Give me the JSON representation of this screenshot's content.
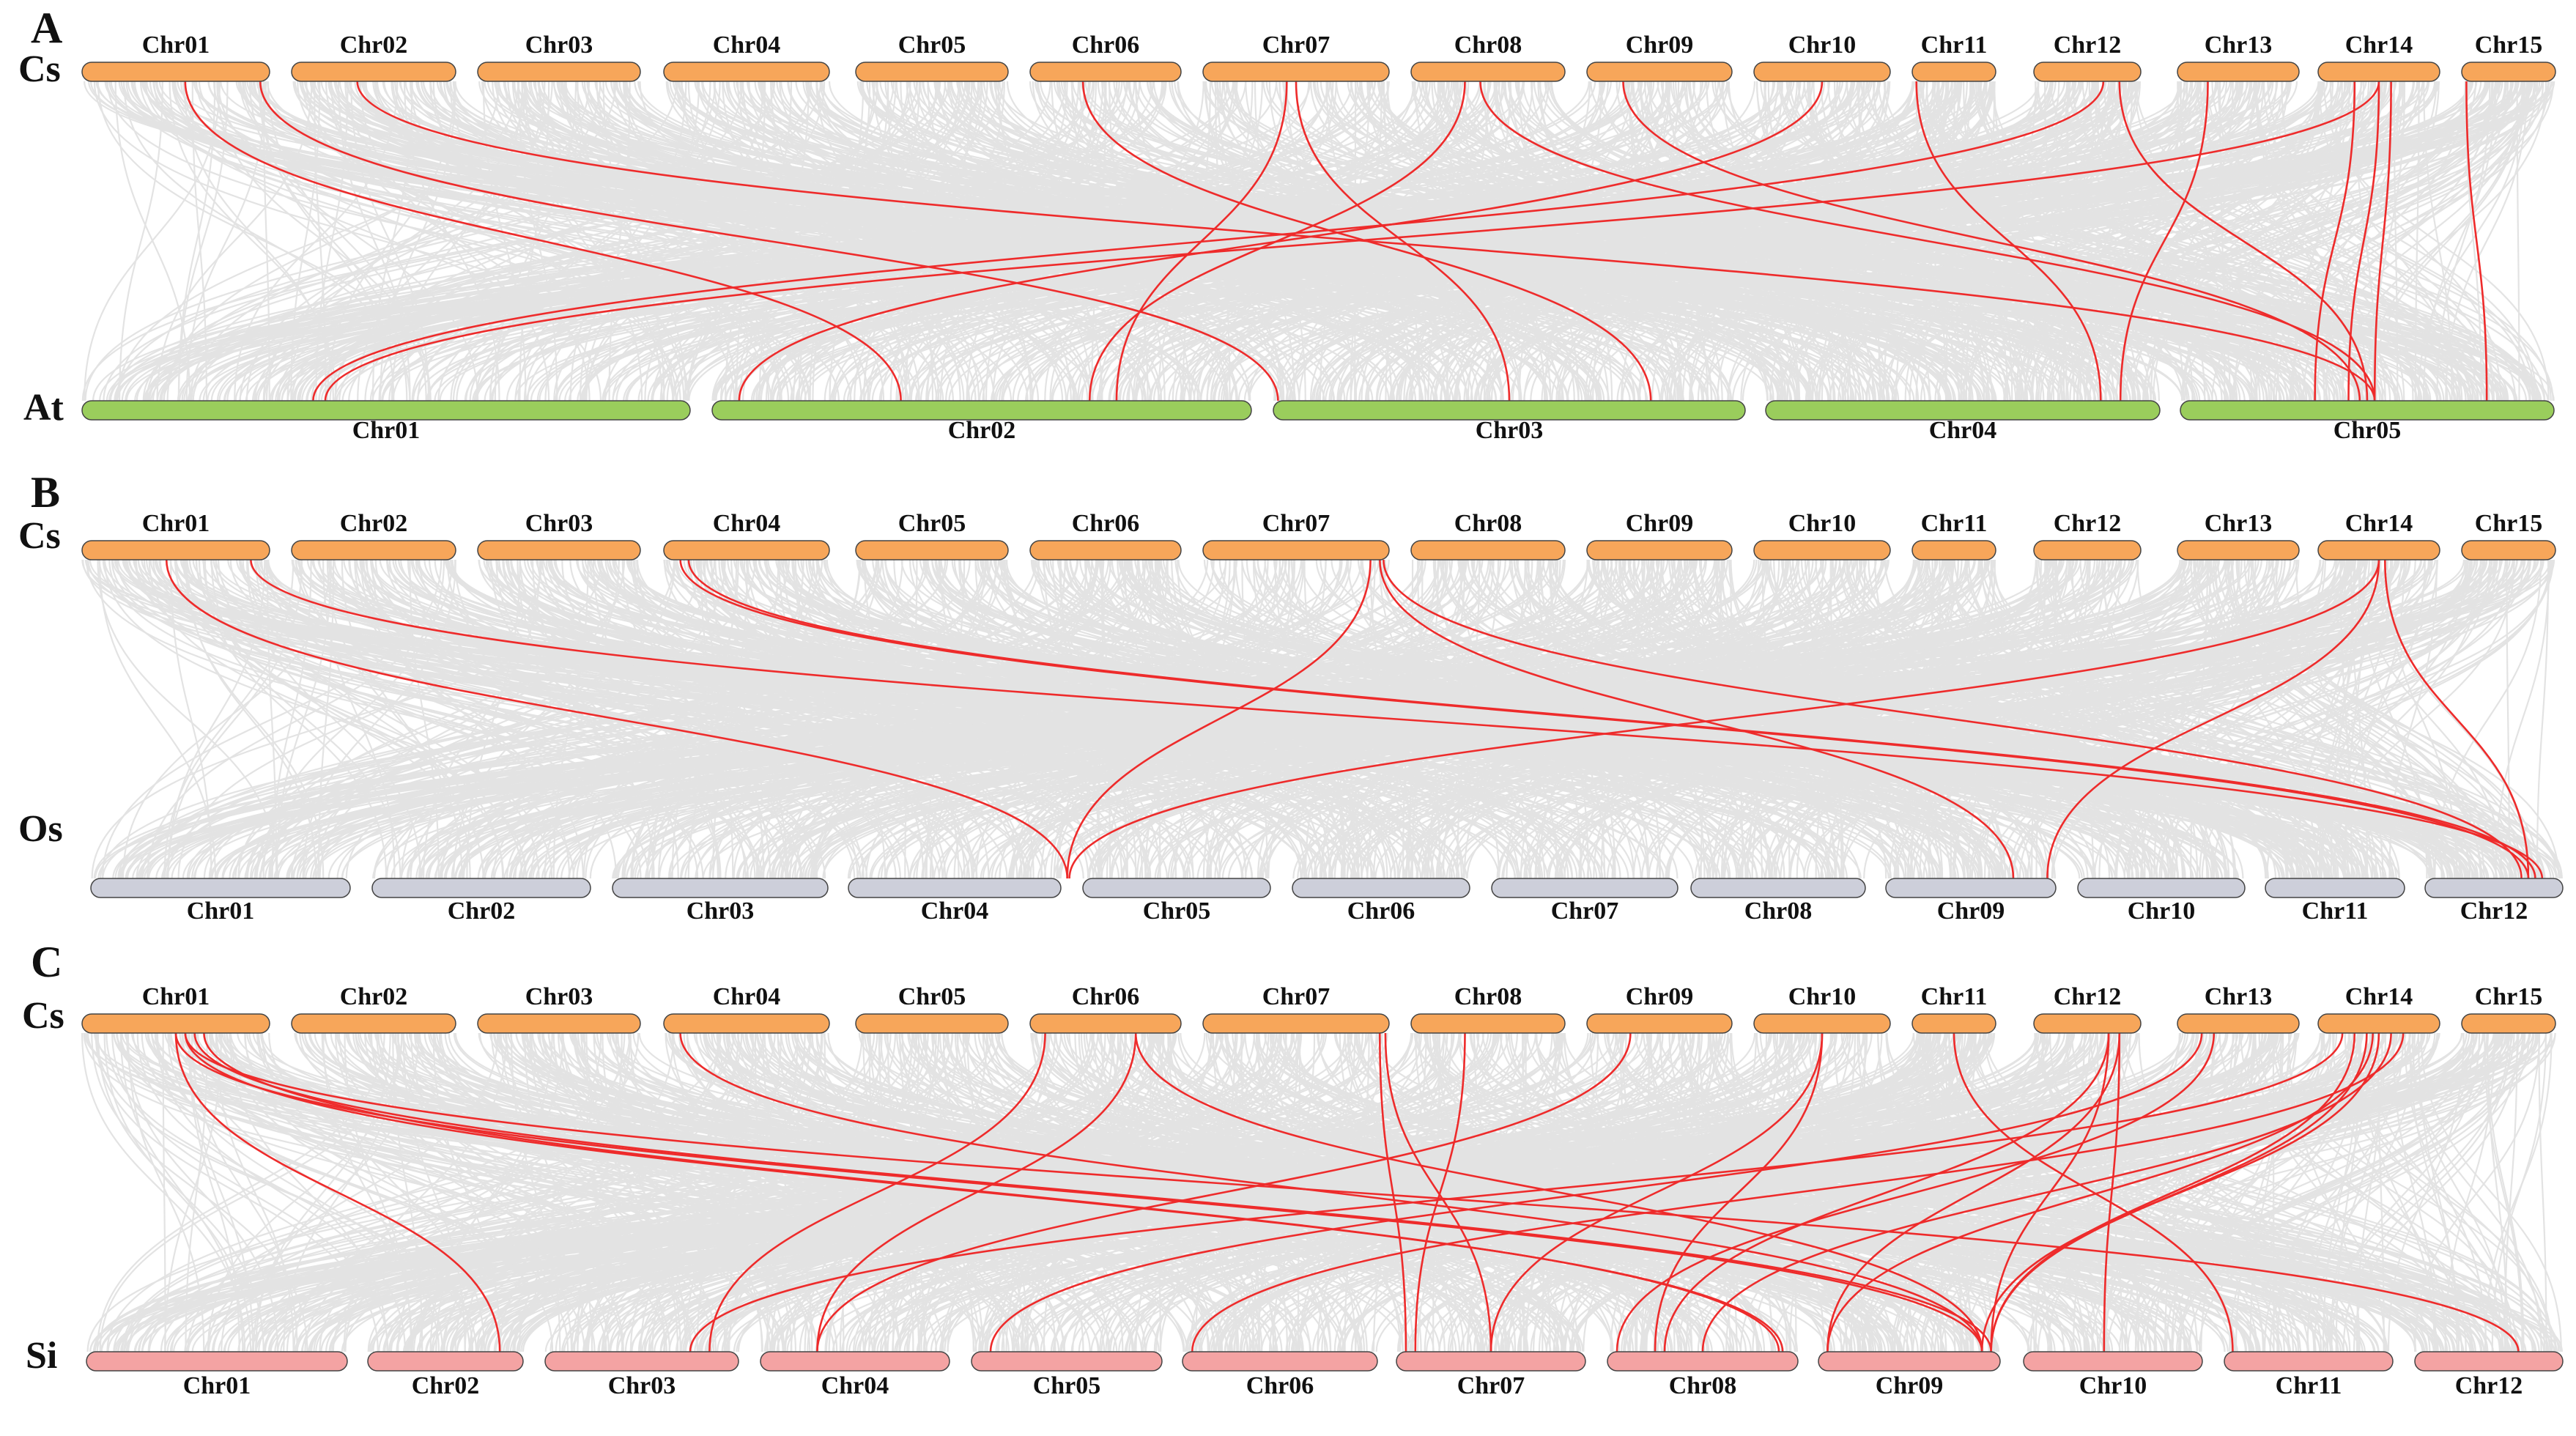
{
  "figure": {
    "colors": {
      "cs": "#F7A65A",
      "at": "#9ACD5C",
      "os": "#CDCFDA",
      "si": "#F4A3A3",
      "synteny": "#e0e0e0",
      "link": "#EE2B2B",
      "outline": "#444444"
    },
    "panels": [
      {
        "letter": "A",
        "top": {
          "species": "Cs",
          "chromosomes": [
            "Chr01",
            "Chr02",
            "Chr03",
            "Chr04",
            "Chr05",
            "Chr06",
            "Chr07",
            "Chr08",
            "Chr09",
            "Chr10",
            "Chr11",
            "Chr12",
            "Chr13",
            "Chr14",
            "Chr15"
          ]
        },
        "bottom": {
          "species": "At",
          "color_key": "at",
          "chromosomes": [
            "Chr01",
            "Chr02",
            "Chr03",
            "Chr04",
            "Chr05"
          ]
        },
        "links": [
          [
            0,
            0.55,
            1,
            0.35
          ],
          [
            0,
            0.95,
            2,
            0.01
          ],
          [
            1,
            0.4,
            4,
            0.52
          ],
          [
            6,
            0.5,
            2,
            0.5
          ],
          [
            5,
            0.35,
            2,
            0.8
          ],
          [
            6,
            0.45,
            1,
            0.75
          ],
          [
            7,
            0.35,
            1,
            0.7
          ],
          [
            7,
            0.45,
            4,
            0.52
          ],
          [
            8,
            0.25,
            4,
            0.48
          ],
          [
            9,
            0.5,
            1,
            0.05
          ],
          [
            10,
            0.05,
            3,
            0.85
          ],
          [
            11,
            0.65,
            0,
            0.38
          ],
          [
            11,
            0.8,
            4,
            0.5
          ],
          [
            12,
            0.25,
            3,
            0.9
          ],
          [
            13,
            0.5,
            0,
            0.4
          ],
          [
            13,
            0.3,
            4,
            0.36
          ],
          [
            13,
            0.5,
            4,
            0.45
          ],
          [
            13,
            0.6,
            4,
            0.52
          ],
          [
            14,
            0.05,
            4,
            0.82
          ]
        ]
      },
      {
        "letter": "B",
        "top": {
          "species": "Cs",
          "chromosomes": [
            "Chr01",
            "Chr02",
            "Chr03",
            "Chr04",
            "Chr05",
            "Chr06",
            "Chr07",
            "Chr08",
            "Chr09",
            "Chr10",
            "Chr11",
            "Chr12",
            "Chr13",
            "Chr14",
            "Chr15"
          ]
        },
        "bottom": {
          "species": "Os",
          "color_key": "os",
          "chromosomes": [
            "Chr01",
            "Chr02",
            "Chr03",
            "Chr04",
            "Chr05",
            "Chr06",
            "Chr07",
            "Chr08",
            "Chr09",
            "Chr10",
            "Chr11",
            "Chr12"
          ]
        },
        "links": [
          [
            0,
            0.45,
            3,
            1.03
          ],
          [
            0,
            0.9,
            11,
            0.85
          ],
          [
            3,
            0.1,
            11,
            0.75
          ],
          [
            3,
            0.15,
            11,
            0.8
          ],
          [
            6,
            0.9,
            3,
            1.03
          ],
          [
            6,
            0.95,
            8,
            0.75
          ],
          [
            6,
            0.97,
            11,
            0.7
          ],
          [
            13,
            0.5,
            3,
            1.04
          ],
          [
            13,
            0.5,
            8,
            0.95
          ],
          [
            13,
            0.55,
            11,
            0.75
          ]
        ]
      },
      {
        "letter": "C",
        "top": {
          "species": "Cs",
          "chromosomes": [
            "Chr01",
            "Chr02",
            "Chr03",
            "Chr04",
            "Chr05",
            "Chr06",
            "Chr07",
            "Chr08",
            "Chr09",
            "Chr10",
            "Chr11",
            "Chr12",
            "Chr13",
            "Chr14",
            "Chr15"
          ]
        },
        "bottom": {
          "species": "Si",
          "color_key": "si",
          "chromosomes": [
            "Chr01",
            "Chr02",
            "Chr03",
            "Chr04",
            "Chr05",
            "Chr06",
            "Chr07",
            "Chr08",
            "Chr09",
            "Chr10",
            "Chr11",
            "Chr12"
          ]
        },
        "links": [
          [
            0,
            0.5,
            1,
            0.85
          ],
          [
            0,
            0.55,
            7,
            0.92
          ],
          [
            0,
            0.6,
            8,
            0.95
          ],
          [
            0,
            0.65,
            7,
            0.9
          ],
          [
            0,
            0.5,
            8,
            0.9
          ],
          [
            0,
            0.55,
            11,
            0.7
          ],
          [
            5,
            0.1,
            2,
            0.85
          ],
          [
            5,
            0.7,
            3,
            0.3
          ],
          [
            5,
            0.7,
            8,
            0.9
          ],
          [
            3,
            0.1,
            8,
            0.9
          ],
          [
            6,
            0.95,
            6,
            0.05
          ],
          [
            6,
            0.98,
            6,
            0.5
          ],
          [
            7,
            0.35,
            6,
            0.1
          ],
          [
            8,
            0.3,
            3,
            0.3
          ],
          [
            9,
            0.5,
            6,
            0.5
          ],
          [
            9,
            0.5,
            7,
            0.25
          ],
          [
            10,
            0.5,
            10,
            0.05
          ],
          [
            11,
            0.7,
            7,
            0.3
          ],
          [
            11,
            0.7,
            8,
            0.95
          ],
          [
            11,
            0.8,
            8,
            0.05
          ],
          [
            11,
            0.8,
            9,
            0.45
          ],
          [
            12,
            0.2,
            4,
            0.1
          ],
          [
            12,
            0.3,
            7,
            0.05
          ],
          [
            13,
            0.2,
            2,
            0.75
          ],
          [
            13,
            0.3,
            8,
            0.95
          ],
          [
            13,
            0.4,
            8,
            0.95
          ],
          [
            13,
            0.45,
            8,
            0.05
          ],
          [
            13,
            0.5,
            8,
            0.9
          ],
          [
            13,
            0.6,
            7,
            0.5
          ],
          [
            13,
            0.7,
            5,
            0.05
          ]
        ]
      }
    ]
  }
}
